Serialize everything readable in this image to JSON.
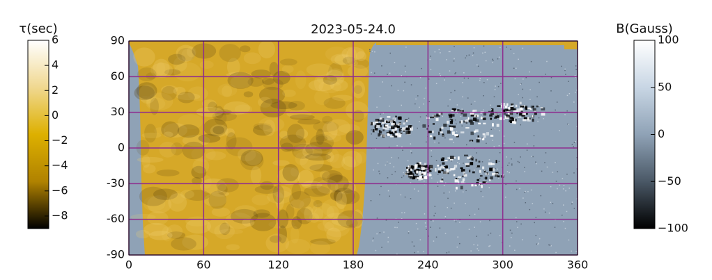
{
  "chart_data": {
    "type": "heatmap",
    "title": "2023-05-24.0",
    "xlim": [
      0,
      360
    ],
    "xticks": [
      0,
      60,
      120,
      180,
      240,
      300,
      360
    ],
    "ylim": [
      -90,
      90
    ],
    "yticks": [
      {
        "value": -90,
        "label": "-90"
      },
      {
        "value": -60,
        "label": "-60"
      },
      {
        "value": -30,
        "label": "-30"
      },
      0,
      30,
      60,
      90
    ],
    "grid": true,
    "grid_color": "#8e2c8e",
    "colorbars": [
      {
        "label": "τ(sec)",
        "lim": [
          -9,
          6
        ],
        "colors": [
          "#000000",
          "#b08200",
          "#ddb000",
          "#f0d890",
          "#ffffff"
        ],
        "ticks": [
          {
            "value": -8,
            "label": "−8"
          },
          {
            "value": -6,
            "label": "−6"
          },
          {
            "value": -4,
            "label": "−4"
          },
          {
            "value": -2,
            "label": "−2"
          },
          0,
          2,
          4,
          6
        ]
      },
      {
        "label": "B(Gauss)",
        "lim": [
          -100,
          100
        ],
        "colors": [
          "#000000",
          "#4a5866",
          "#8fa2b6",
          "#c8d6e4",
          "#ffffff"
        ],
        "ticks": [
          {
            "value": -100,
            "label": "−100"
          },
          {
            "value": -50,
            "label": "−50"
          },
          0,
          50,
          100
        ]
      }
    ]
  }
}
